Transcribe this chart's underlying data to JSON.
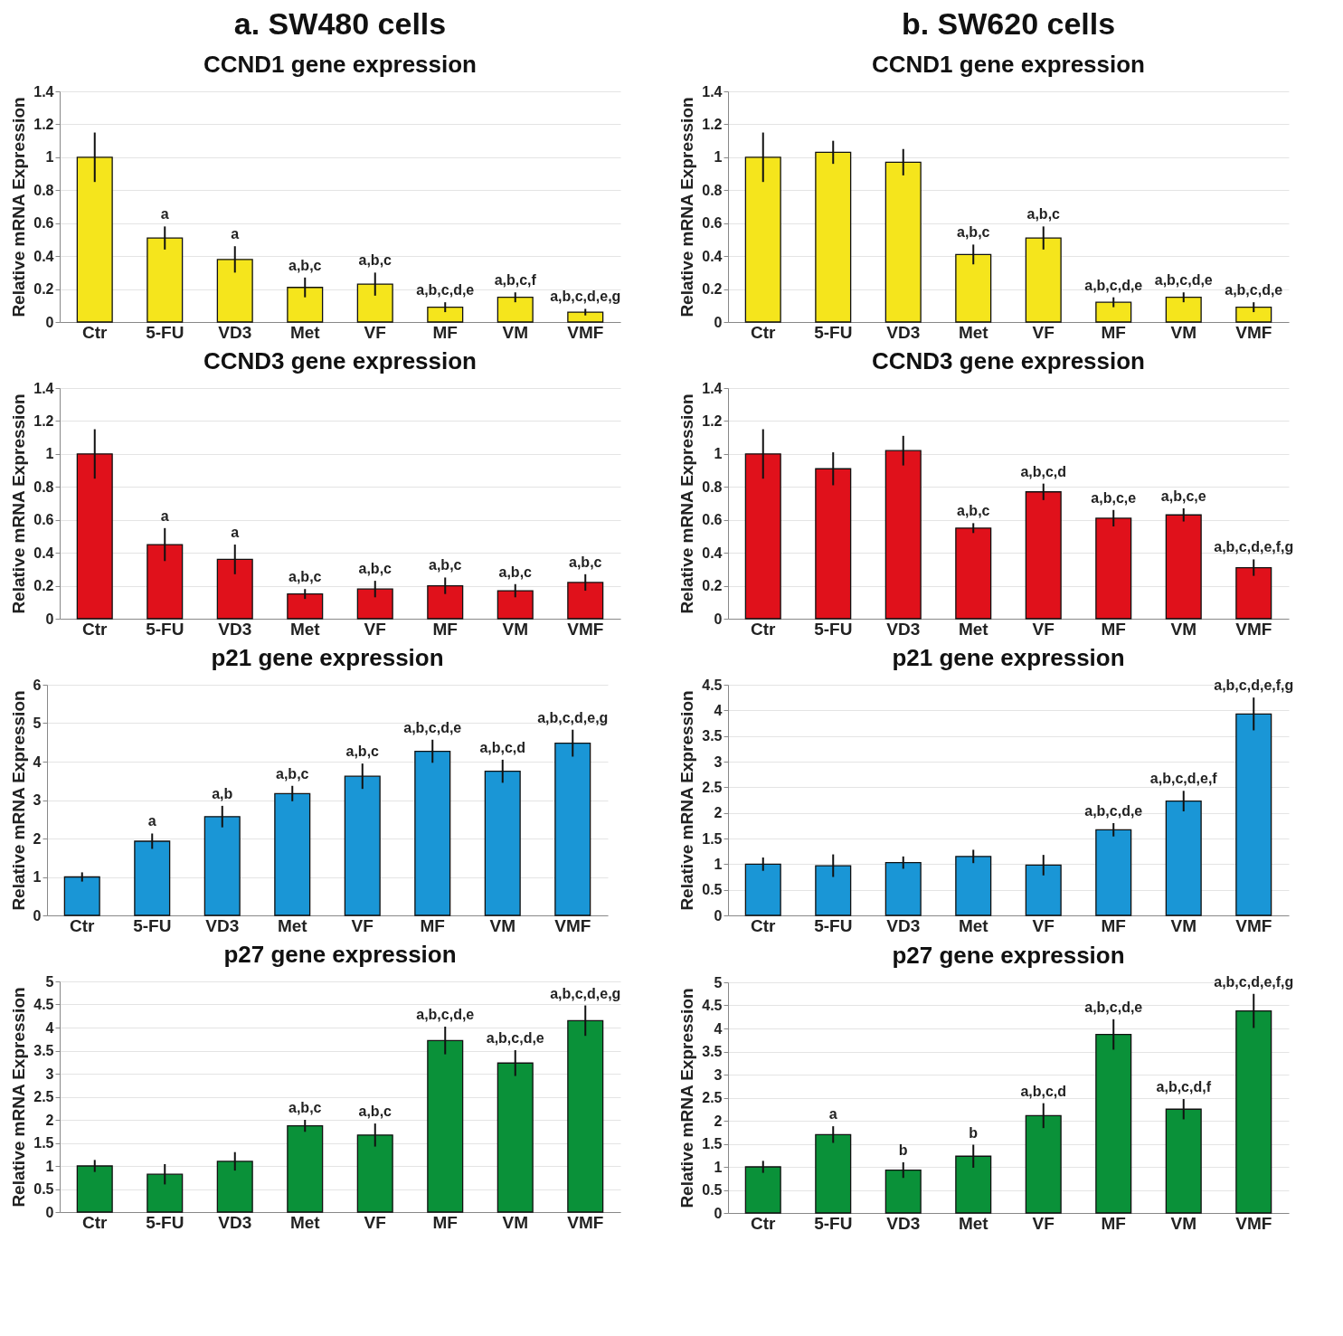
{
  "chart_data": [
    {
      "type": "bar",
      "title": "a. SW480 cells",
      "subtitle": "CCND1 gene expression",
      "ylabel": "Relative mRNA Expression",
      "categories": [
        "Ctr",
        "5-FU",
        "VD3",
        "Met",
        "VF",
        "MF",
        "VM",
        "VMF"
      ],
      "color": "#f5e51c",
      "values": [
        1,
        0.51,
        0.38,
        0.21,
        0.23,
        0.09,
        0.15,
        0.06
      ],
      "errors": [
        0.15,
        0.07,
        0.08,
        0.06,
        0.07,
        0.03,
        0.03,
        0.02
      ],
      "ylim": [
        0,
        1.4
      ],
      "yticks": [
        0,
        0.2,
        0.4,
        0.6,
        0.8,
        1,
        1.2,
        1.4
      ],
      "grid": "y",
      "annotations": [
        {
          "text": "a",
          "x": "5-FU",
          "y": 0.58
        },
        {
          "text": "a",
          "x": "VD3",
          "y": 0.46
        },
        {
          "text": "a,b,c",
          "x": "Met",
          "y": 0.27
        },
        {
          "text": "a,b,c",
          "x": "VF",
          "y": 0.3
        },
        {
          "text": "a,b,c,d,e",
          "x": "MF",
          "y": 0.12
        },
        {
          "text": "a,b,c,f",
          "x": "VM",
          "y": 0.18
        },
        {
          "text": "a,b,c,d,e,g",
          "x": "VMF",
          "y": 0.08
        }
      ]
    },
    {
      "type": "bar",
      "title": "CCND3 gene expression",
      "ylabel": "Relative mRNA Expression",
      "categories": [
        "Ctr",
        "5-FU",
        "VD3",
        "Met",
        "VF",
        "MF",
        "VM",
        "VMF"
      ],
      "color": "#e0111b",
      "values": [
        1,
        0.45,
        0.36,
        0.15,
        0.18,
        0.2,
        0.17,
        0.22
      ],
      "errors": [
        0.15,
        0.1,
        0.09,
        0.03,
        0.05,
        0.05,
        0.04,
        0.05
      ],
      "ylim": [
        0,
        1.4
      ],
      "yticks": [
        0,
        0.2,
        0.4,
        0.6,
        0.8,
        1,
        1.2,
        1.4
      ],
      "grid": "y",
      "annotations": [
        {
          "text": "a",
          "x": "5-FU",
          "y": 0.55
        },
        {
          "text": "a",
          "x": "VD3",
          "y": 0.45
        },
        {
          "text": "a,b,c",
          "x": "Met",
          "y": 0.18
        },
        {
          "text": "a,b,c",
          "x": "VF",
          "y": 0.23
        },
        {
          "text": "a,b,c",
          "x": "MF",
          "y": 0.25
        },
        {
          "text": "a,b,c",
          "x": "VM",
          "y": 0.21
        },
        {
          "text": "a,b,c",
          "x": "VMF",
          "y": 0.27
        }
      ]
    },
    {
      "type": "bar",
      "title": "p21 gene expression",
      "ylabel": "Relative mRNA Expression",
      "categories": [
        "Ctr",
        "5-FU",
        "VD3",
        "Met",
        "VF",
        "MF",
        "VM",
        "VMF"
      ],
      "color": "#1a96d6",
      "values": [
        1,
        1.93,
        2.57,
        3.17,
        3.62,
        4.27,
        3.75,
        4.48
      ],
      "errors": [
        0.12,
        0.2,
        0.28,
        0.2,
        0.33,
        0.3,
        0.3,
        0.35
      ],
      "ylim": [
        0,
        6
      ],
      "yticks": [
        0,
        1,
        2,
        3,
        4,
        5,
        6
      ],
      "grid": "y",
      "annotations": [
        {
          "text": "a",
          "x": "5-FU",
          "y": 2.13
        },
        {
          "text": "a,b",
          "x": "VD3",
          "y": 2.85
        },
        {
          "text": "a,b,c",
          "x": "Met",
          "y": 3.37
        },
        {
          "text": "a,b,c",
          "x": "VF",
          "y": 3.95
        },
        {
          "text": "a,b,c,d,e",
          "x": "MF",
          "y": 4.57
        },
        {
          "text": "a,b,c,d",
          "x": "VM",
          "y": 4.05
        },
        {
          "text": "a,b,c,d,e,g",
          "x": "VMF",
          "y": 4.83
        }
      ]
    },
    {
      "type": "bar",
      "title": "p27 gene expression",
      "ylabel": "Relative mRNA Expression",
      "categories": [
        "Ctr",
        "5-FU",
        "VD3",
        "Met",
        "VF",
        "MF",
        "VM",
        "VMF"
      ],
      "color": "#0a9139",
      "values": [
        1,
        0.82,
        1.1,
        1.87,
        1.67,
        3.72,
        3.23,
        4.15
      ],
      "errors": [
        0.13,
        0.22,
        0.2,
        0.13,
        0.25,
        0.3,
        0.28,
        0.33
      ],
      "ylim": [
        0,
        5
      ],
      "yticks": [
        0,
        0.5,
        1,
        1.5,
        2,
        2.5,
        3,
        3.5,
        4,
        4.5,
        5
      ],
      "grid": "y",
      "annotations": [
        {
          "text": "a,b,c",
          "x": "Met",
          "y": 2
        },
        {
          "text": "a,b,c",
          "x": "VF",
          "y": 1.92
        },
        {
          "text": "a,b,c,d,e",
          "x": "MF",
          "y": 4.02
        },
        {
          "text": "a,b,c,d,e",
          "x": "VM",
          "y": 3.51
        },
        {
          "text": "a,b,c,d,e,g",
          "x": "VMF",
          "y": 4.48
        }
      ]
    },
    {
      "type": "bar",
      "title": "b. SW620 cells",
      "subtitle": "CCND1 gene expression",
      "ylabel": "Relative mRNA Expression",
      "categories": [
        "Ctr",
        "5-FU",
        "VD3",
        "Met",
        "VF",
        "MF",
        "VM",
        "VMF"
      ],
      "color": "#f5e51c",
      "values": [
        1,
        1.03,
        0.97,
        0.41,
        0.51,
        0.12,
        0.15,
        0.09
      ],
      "errors": [
        0.15,
        0.07,
        0.08,
        0.06,
        0.07,
        0.03,
        0.03,
        0.03
      ],
      "ylim": [
        0,
        1.4
      ],
      "yticks": [
        0,
        0.2,
        0.4,
        0.6,
        0.8,
        1,
        1.2,
        1.4
      ],
      "grid": "y",
      "annotations": [
        {
          "text": "a,b,c",
          "x": "Met",
          "y": 0.47
        },
        {
          "text": "a,b,c",
          "x": "VF",
          "y": 0.58
        },
        {
          "text": "a,b,c,d,e",
          "x": "MF",
          "y": 0.15
        },
        {
          "text": "a,b,c,d,e",
          "x": "VM",
          "y": 0.18
        },
        {
          "text": "a,b,c,d,e",
          "x": "VMF",
          "y": 0.12
        }
      ]
    },
    {
      "type": "bar",
      "title": "CCND3 gene expression",
      "ylabel": "Relative mRNA Expression",
      "categories": [
        "Ctr",
        "5-FU",
        "VD3",
        "Met",
        "VF",
        "MF",
        "VM",
        "VMF"
      ],
      "color": "#e0111b",
      "values": [
        1,
        0.91,
        1.02,
        0.55,
        0.77,
        0.61,
        0.63,
        0.31
      ],
      "errors": [
        0.15,
        0.1,
        0.09,
        0.03,
        0.05,
        0.05,
        0.04,
        0.05
      ],
      "ylim": [
        0,
        1.4
      ],
      "yticks": [
        0,
        0.2,
        0.4,
        0.6,
        0.8,
        1,
        1.2,
        1.4
      ],
      "grid": "y",
      "annotations": [
        {
          "text": "a,b,c",
          "x": "Met",
          "y": 0.58
        },
        {
          "text": "a,b,c,d",
          "x": "VF",
          "y": 0.82
        },
        {
          "text": "a,b,c,e",
          "x": "MF",
          "y": 0.66
        },
        {
          "text": "a,b,c,e",
          "x": "VM",
          "y": 0.67
        },
        {
          "text": "a,b,c,d,e,f,g",
          "x": "VMF",
          "y": 0.36
        }
      ]
    },
    {
      "type": "bar",
      "title": "p21 gene expression",
      "ylabel": "Relative mRNA Expression",
      "categories": [
        "Ctr",
        "5-FU",
        "VD3",
        "Met",
        "VF",
        "MF",
        "VM",
        "VMF"
      ],
      "color": "#1a96d6",
      "values": [
        1,
        0.97,
        1.03,
        1.15,
        0.98,
        1.67,
        2.23,
        3.93
      ],
      "errors": [
        0.13,
        0.22,
        0.12,
        0.13,
        0.2,
        0.13,
        0.2,
        0.32
      ],
      "ylim": [
        0,
        4.5
      ],
      "yticks": [
        0,
        0.5,
        1,
        1.5,
        2,
        2.5,
        3,
        3.5,
        4,
        4.5
      ],
      "grid": "y",
      "annotations": [
        {
          "text": "a,b,c,d,e",
          "x": "MF",
          "y": 1.8
        },
        {
          "text": "a,b,c,d,e,f",
          "x": "VM",
          "y": 2.43
        },
        {
          "text": "a,b,c,d,e,f,g",
          "x": "VMF",
          "y": 4.25
        }
      ]
    },
    {
      "type": "bar",
      "title": "p27 gene expression",
      "ylabel": "Relative mRNA Expression",
      "categories": [
        "Ctr",
        "5-FU",
        "VD3",
        "Met",
        "VF",
        "MF",
        "VM",
        "VMF"
      ],
      "color": "#0a9139",
      "values": [
        1,
        1.7,
        0.93,
        1.23,
        2.11,
        3.87,
        2.25,
        4.38
      ],
      "errors": [
        0.13,
        0.18,
        0.17,
        0.25,
        0.27,
        0.33,
        0.22,
        0.37
      ],
      "ylim": [
        0,
        5
      ],
      "yticks": [
        0,
        0.5,
        1,
        1.5,
        2,
        2.5,
        3,
        3.5,
        4,
        4.5,
        5
      ],
      "grid": "y",
      "annotations": [
        {
          "text": "a",
          "x": "5-FU",
          "y": 1.88
        },
        {
          "text": "b",
          "x": "VD3",
          "y": 1.1
        },
        {
          "text": "b",
          "x": "Met",
          "y": 1.48
        },
        {
          "text": "a,b,c,d",
          "x": "VF",
          "y": 2.38
        },
        {
          "text": "a,b,c,d,e",
          "x": "MF",
          "y": 4.2
        },
        {
          "text": "a,b,c,d,f",
          "x": "VM",
          "y": 2.47
        },
        {
          "text": "a,b,c,d,e,f,g",
          "x": "VMF",
          "y": 4.75
        }
      ]
    }
  ]
}
